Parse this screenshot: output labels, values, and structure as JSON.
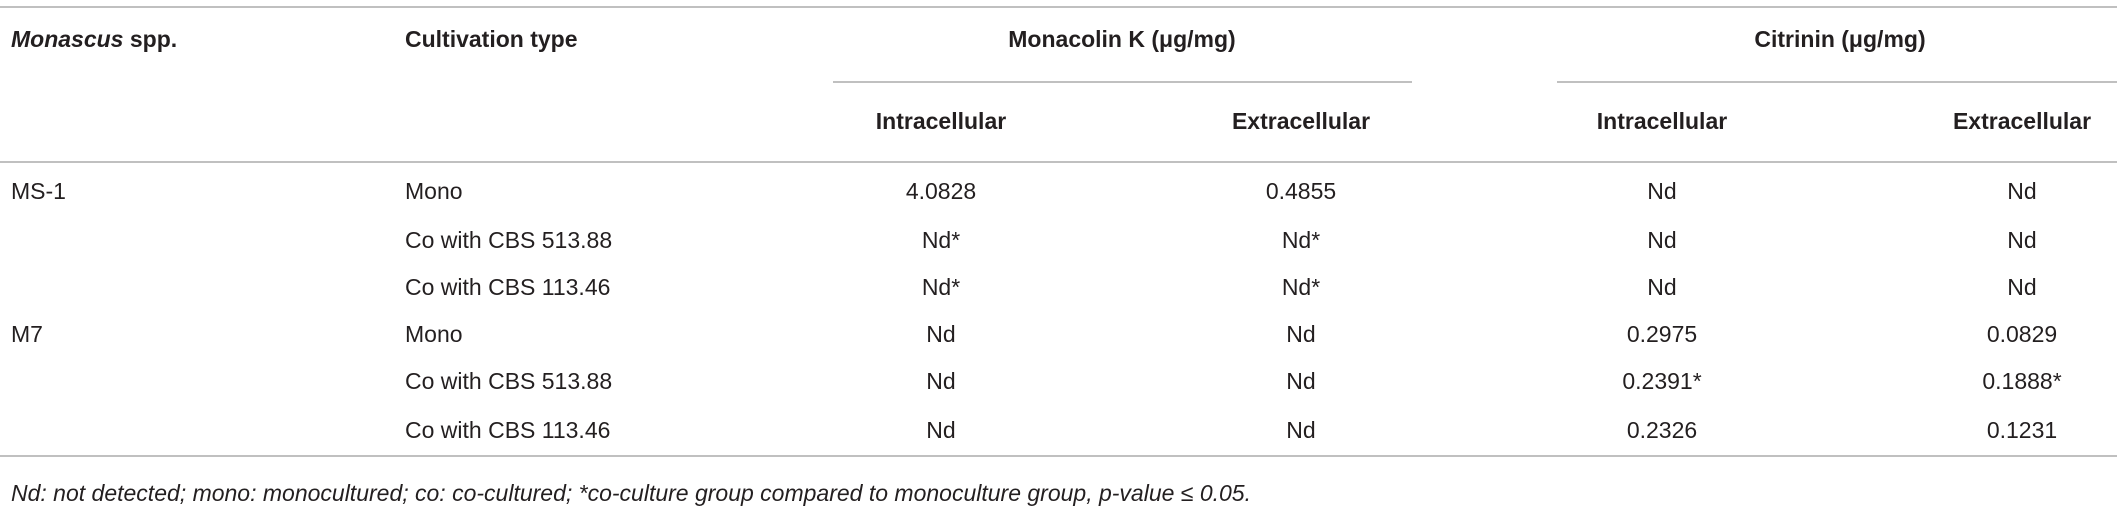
{
  "table": {
    "header": {
      "strain_italic": "Monascus",
      "strain_rest": " spp.",
      "cultivation": "Cultivation type",
      "monacolin": "Monacolin K (μg/mg)",
      "citrinin": "Citrinin (μg/mg)",
      "subheaders": [
        "Intracellular",
        "Extracellular",
        "Intracellular",
        "Extracellular"
      ]
    },
    "groups": [
      {
        "strain": "MS-1",
        "rows": [
          [
            "Mono",
            "4.0828",
            "0.4855",
            "Nd",
            "Nd"
          ],
          [
            "Co with CBS 513.88",
            "Nd*",
            "Nd*",
            "Nd",
            "Nd"
          ],
          [
            "Co with CBS 113.46",
            "Nd*",
            "Nd*",
            "Nd",
            "Nd"
          ]
        ]
      },
      {
        "strain": "M7",
        "rows": [
          [
            "Mono",
            "Nd",
            "Nd",
            "0.2975",
            "0.0829"
          ],
          [
            "Co with CBS 513.88",
            "Nd",
            "Nd",
            "0.2391*",
            "0.1888*"
          ],
          [
            "Co with CBS 113.46",
            "Nd",
            "Nd",
            "0.2326",
            "0.1231"
          ]
        ]
      }
    ],
    "footnote": "Nd: not detected; mono: monocultured; co: co-cultured; *co-culture group compared to monoculture group, p-value ≤ 0.05."
  }
}
